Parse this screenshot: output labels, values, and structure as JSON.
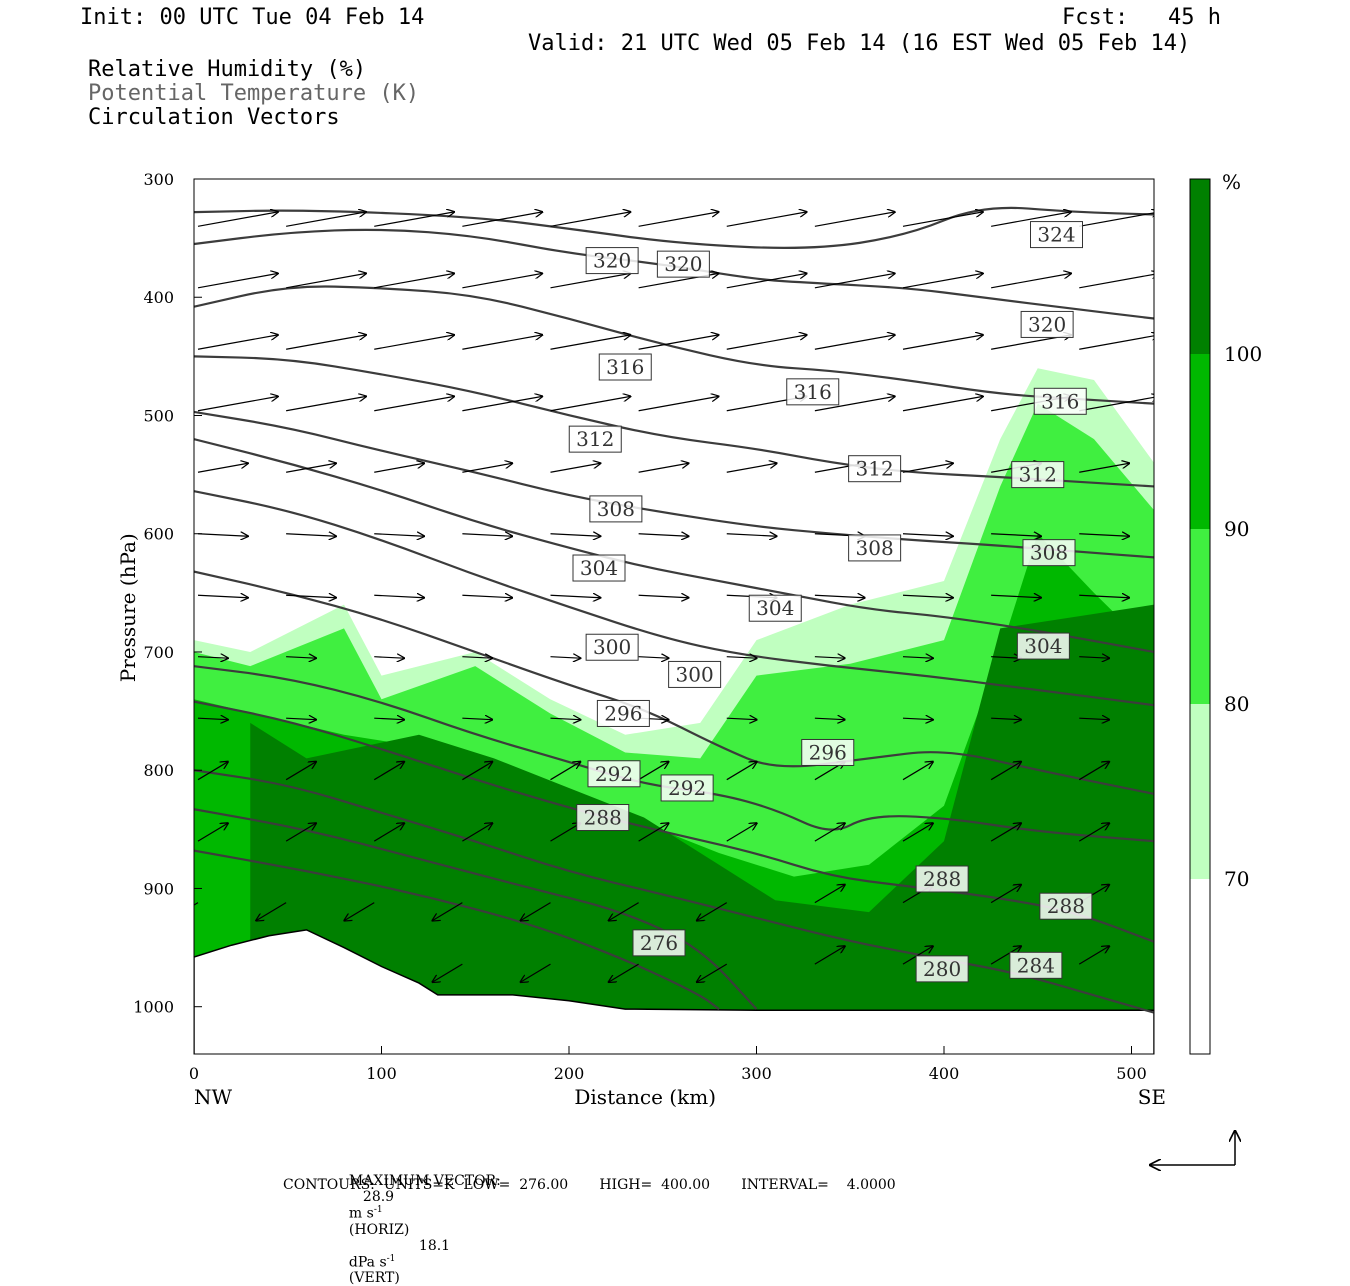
{
  "header": {
    "init": "Init: 00 UTC Tue 04 Feb 14",
    "fcst": "Fcst:   45 h",
    "valid": "Valid: 21 UTC Wed 05 Feb 14 (16 EST Wed 05 Feb 14)"
  },
  "legend_lines": [
    "Relative Humidity (%)",
    "Potential Temperature (K)",
    "Circulation Vectors"
  ],
  "colors": {
    "rh_70_80": "#c0ffc0",
    "rh_80_90": "#40ef40",
    "rh_90_100": "#00b800",
    "rh_100": "#008000",
    "isentrope": "#3c3c3c"
  },
  "chart_data": {
    "type": "cross-section",
    "xlabel": "Distance (km)",
    "ylabel": "Pressure (hPa)",
    "xlim": [
      0,
      512
    ],
    "ylim": [
      1040,
      300
    ],
    "x_ticks": [
      0,
      100,
      200,
      300,
      400,
      500
    ],
    "y_ticks": [
      300,
      400,
      500,
      600,
      700,
      800,
      900,
      1000
    ],
    "endpoints": {
      "left": "NW",
      "right": "SE"
    },
    "colorbar": {
      "unit": "%",
      "levels": [
        70,
        80,
        90,
        100
      ]
    },
    "isentropes": [
      {
        "theta": 324,
        "points": [
          [
            0,
            328
          ],
          [
            60,
            326
          ],
          [
            150,
            332
          ],
          [
            200,
            342
          ],
          [
            260,
            355
          ],
          [
            330,
            360
          ],
          [
            380,
            348
          ],
          [
            420,
            322
          ],
          [
            470,
            328
          ],
          [
            512,
            330
          ]
        ]
      },
      {
        "theta": 320,
        "points": [
          [
            0,
            355
          ],
          [
            50,
            345
          ],
          [
            100,
            342
          ],
          [
            150,
            348
          ],
          [
            200,
            363
          ],
          [
            250,
            372
          ],
          [
            300,
            385
          ],
          [
            330,
            388
          ],
          [
            380,
            392
          ],
          [
            420,
            400
          ],
          [
            470,
            410
          ],
          [
            512,
            418
          ]
        ]
      },
      {
        "theta": 316,
        "points": [
          [
            0,
            408
          ],
          [
            50,
            390
          ],
          [
            100,
            392
          ],
          [
            150,
            398
          ],
          [
            200,
            418
          ],
          [
            250,
            440
          ],
          [
            300,
            458
          ],
          [
            340,
            462
          ],
          [
            380,
            470
          ],
          [
            430,
            482
          ],
          [
            470,
            486
          ],
          [
            512,
            490
          ]
        ]
      },
      {
        "theta": 312,
        "points": [
          [
            0,
            450
          ],
          [
            50,
            452
          ],
          [
            100,
            465
          ],
          [
            150,
            480
          ],
          [
            200,
            500
          ],
          [
            250,
            518
          ],
          [
            300,
            528
          ],
          [
            340,
            540
          ],
          [
            380,
            548
          ],
          [
            430,
            552
          ],
          [
            470,
            556
          ],
          [
            512,
            560
          ]
        ]
      },
      {
        "theta": 308,
        "points": [
          [
            0,
            497
          ],
          [
            50,
            510
          ],
          [
            100,
            530
          ],
          [
            150,
            548
          ],
          [
            200,
            568
          ],
          [
            250,
            582
          ],
          [
            300,
            594
          ],
          [
            340,
            600
          ],
          [
            380,
            605
          ],
          [
            430,
            610
          ],
          [
            470,
            615
          ],
          [
            512,
            620
          ]
        ]
      },
      {
        "theta": 304,
        "points": [
          [
            0,
            520
          ],
          [
            50,
            540
          ],
          [
            100,
            563
          ],
          [
            150,
            590
          ],
          [
            200,
            612
          ],
          [
            240,
            628
          ],
          [
            280,
            640
          ],
          [
            320,
            652
          ],
          [
            360,
            664
          ],
          [
            400,
            670
          ],
          [
            450,
            682
          ],
          [
            512,
            700
          ]
        ]
      },
      {
        "theta": 300,
        "points": [
          [
            0,
            564
          ],
          [
            50,
            580
          ],
          [
            100,
            605
          ],
          [
            150,
            635
          ],
          [
            200,
            662
          ],
          [
            250,
            688
          ],
          [
            290,
            702
          ],
          [
            340,
            712
          ],
          [
            390,
            720
          ],
          [
            440,
            730
          ],
          [
            512,
            745
          ]
        ]
      },
      {
        "theta": 296,
        "points": [
          [
            0,
            632
          ],
          [
            50,
            650
          ],
          [
            100,
            672
          ],
          [
            150,
            700
          ],
          [
            200,
            728
          ],
          [
            240,
            748
          ],
          [
            280,
            780
          ],
          [
            310,
            800
          ],
          [
            360,
            790
          ],
          [
            400,
            782
          ],
          [
            450,
            800
          ],
          [
            512,
            820
          ]
        ]
      },
      {
        "theta": 292,
        "points": [
          [
            0,
            712
          ],
          [
            50,
            722
          ],
          [
            100,
            742
          ],
          [
            150,
            770
          ],
          [
            200,
            793
          ],
          [
            240,
            812
          ],
          [
            280,
            820
          ],
          [
            310,
            833
          ],
          [
            340,
            855
          ],
          [
            360,
            838
          ],
          [
            400,
            840
          ],
          [
            450,
            852
          ],
          [
            512,
            860
          ]
        ]
      },
      {
        "theta": 288,
        "points": [
          [
            0,
            742
          ],
          [
            50,
            758
          ],
          [
            100,
            782
          ],
          [
            150,
            808
          ],
          [
            200,
            832
          ],
          [
            250,
            852
          ],
          [
            300,
            870
          ],
          [
            340,
            890
          ],
          [
            380,
            898
          ],
          [
            430,
            908
          ],
          [
            470,
            920
          ],
          [
            512,
            945
          ]
        ]
      },
      {
        "theta": 284,
        "points": [
          [
            0,
            800
          ],
          [
            50,
            812
          ],
          [
            100,
            836
          ],
          [
            150,
            860
          ],
          [
            200,
            886
          ],
          [
            250,
            905
          ],
          [
            300,
            925
          ],
          [
            350,
            945
          ],
          [
            400,
            960
          ],
          [
            440,
            972
          ],
          [
            490,
            995
          ],
          [
            512,
            1005
          ]
        ]
      },
      {
        "theta": 280,
        "points": [
          [
            0,
            833
          ],
          [
            60,
            850
          ],
          [
            120,
            875
          ],
          [
            180,
            900
          ],
          [
            230,
            920
          ],
          [
            270,
            950
          ],
          [
            300,
            1002
          ]
        ]
      },
      {
        "theta": 276,
        "points": [
          [
            0,
            868
          ],
          [
            60,
            885
          ],
          [
            120,
            905
          ],
          [
            180,
            930
          ],
          [
            230,
            960
          ],
          [
            270,
            990
          ],
          [
            280,
            1002
          ]
        ]
      }
    ],
    "contour_labels": [
      {
        "text": "324",
        "x": 460,
        "p": 347
      },
      {
        "text": "320",
        "x": 223,
        "p": 369
      },
      {
        "text": "320",
        "x": 261,
        "p": 372
      },
      {
        "text": "320",
        "x": 455,
        "p": 423
      },
      {
        "text": "316",
        "x": 230,
        "p": 459
      },
      {
        "text": "316",
        "x": 330,
        "p": 480
      },
      {
        "text": "316",
        "x": 462,
        "p": 488
      },
      {
        "text": "312",
        "x": 214,
        "p": 520
      },
      {
        "text": "312",
        "x": 363,
        "p": 545
      },
      {
        "text": "312",
        "x": 450,
        "p": 550
      },
      {
        "text": "308",
        "x": 225,
        "p": 579
      },
      {
        "text": "308",
        "x": 363,
        "p": 612
      },
      {
        "text": "308",
        "x": 456,
        "p": 616
      },
      {
        "text": "304",
        "x": 216,
        "p": 629
      },
      {
        "text": "304",
        "x": 310,
        "p": 663
      },
      {
        "text": "304",
        "x": 453,
        "p": 695
      },
      {
        "text": "300",
        "x": 223,
        "p": 696
      },
      {
        "text": "300",
        "x": 267,
        "p": 719
      },
      {
        "text": "296",
        "x": 229,
        "p": 752
      },
      {
        "text": "296",
        "x": 338,
        "p": 785
      },
      {
        "text": "292",
        "x": 224,
        "p": 803
      },
      {
        "text": "292",
        "x": 263,
        "p": 815
      },
      {
        "text": "288",
        "x": 218,
        "p": 840
      },
      {
        "text": "288",
        "x": 399,
        "p": 892
      },
      {
        "text": "288",
        "x": 465,
        "p": 915
      },
      {
        "text": "276",
        "x": 248,
        "p": 946
      },
      {
        "text": "280",
        "x": 399,
        "p": 968
      },
      {
        "text": "284",
        "x": 449,
        "p": 965
      }
    ],
    "humidity_bands": [
      {
        "level": "70-80",
        "top": [
          [
            0,
            690
          ],
          [
            30,
            700
          ],
          [
            80,
            660
          ],
          [
            100,
            720
          ],
          [
            150,
            700
          ],
          [
            190,
            740
          ],
          [
            230,
            770
          ],
          [
            270,
            760
          ],
          [
            300,
            690
          ],
          [
            350,
            660
          ],
          [
            400,
            640
          ],
          [
            430,
            520
          ],
          [
            450,
            460
          ],
          [
            480,
            470
          ],
          [
            512,
            540
          ]
        ]
      },
      {
        "level": "80-90",
        "top": [
          [
            0,
            700
          ],
          [
            30,
            712
          ],
          [
            80,
            680
          ],
          [
            100,
            740
          ],
          [
            150,
            712
          ],
          [
            190,
            752
          ],
          [
            230,
            785
          ],
          [
            270,
            790
          ],
          [
            300,
            720
          ],
          [
            350,
            710
          ],
          [
            400,
            690
          ],
          [
            430,
            560
          ],
          [
            450,
            490
          ],
          [
            480,
            520
          ],
          [
            512,
            580
          ]
        ]
      },
      {
        "level": "90-100",
        "top": [
          [
            0,
            740
          ],
          [
            40,
            755
          ],
          [
            80,
            770
          ],
          [
            120,
            780
          ],
          [
            160,
            800
          ],
          [
            200,
            820
          ],
          [
            240,
            845
          ],
          [
            280,
            870
          ],
          [
            320,
            890
          ],
          [
            360,
            880
          ],
          [
            400,
            830
          ],
          [
            430,
            700
          ],
          [
            450,
            600
          ],
          [
            480,
            650
          ],
          [
            512,
            700
          ]
        ]
      },
      {
        "level": ">100",
        "top": [
          [
            30,
            760
          ],
          [
            60,
            790
          ],
          [
            120,
            770
          ],
          [
            160,
            790
          ],
          [
            200,
            815
          ],
          [
            240,
            840
          ],
          [
            280,
            880
          ],
          [
            310,
            910
          ],
          [
            360,
            920
          ],
          [
            400,
            860
          ],
          [
            430,
            680
          ],
          [
            512,
            660
          ]
        ]
      }
    ],
    "terrain": [
      [
        0,
        958
      ],
      [
        20,
        948
      ],
      [
        40,
        940
      ],
      [
        60,
        935
      ],
      [
        80,
        950
      ],
      [
        100,
        966
      ],
      [
        120,
        980
      ],
      [
        130,
        990
      ],
      [
        150,
        990
      ],
      [
        170,
        990
      ],
      [
        200,
        995
      ],
      [
        230,
        1002
      ],
      [
        300,
        1003
      ],
      [
        400,
        1003
      ],
      [
        512,
        1003
      ]
    ],
    "max_vector": {
      "horiz": "28.9",
      "horiz_unit": "m s",
      "vert": "18.1",
      "vert_unit": "dPa s"
    },
    "contours": {
      "units": "K",
      "low": "276.00",
      "high": "400.00",
      "interval": "4.0000"
    }
  },
  "footer": {
    "max_vector_label": "MAXIMUM VECTOR:",
    "horiz_value": "28.9",
    "horiz_unit_text": "m s",
    "horiz_exp": "-1",
    "horiz_tag": "(HORIZ)",
    "vert_value": "18.1",
    "vert_unit_text": "dPa s",
    "vert_exp": "-1",
    "vert_tag": "(VERT)",
    "contours_line": "CONTOURS:  UNITS=K  LOW=  276.00       HIGH=  400.00       INTERVAL=    4.0000"
  }
}
